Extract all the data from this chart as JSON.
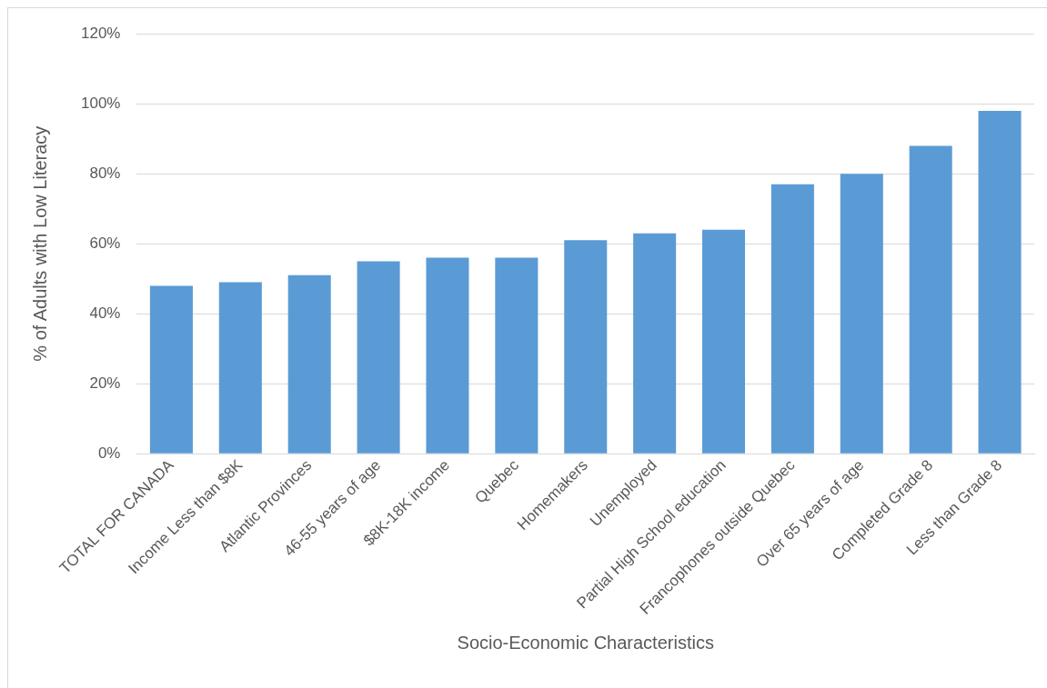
{
  "chart_data": {
    "type": "bar",
    "xlabel": "Socio-Economic Characteristics",
    "ylabel": "% of Adults with Low Literacy",
    "categories": [
      "TOTAL FOR CANADA",
      "Income Less than $8K",
      "Atlantic Provinces",
      "46-55 years of age",
      "$8K-18K income",
      "Quebec",
      "Homemakers",
      "Unemployed",
      "Partial High School education",
      "Francophones outside Quebec",
      "Over 65 years of age",
      "Completed Grade 8",
      "Less than Grade 8"
    ],
    "values": [
      48,
      49,
      51,
      55,
      56,
      56,
      61,
      63,
      64,
      77,
      80,
      88,
      98
    ],
    "color": "#5b9bd5",
    "ylim": [
      0,
      120
    ],
    "yticks": [
      {
        "value": 0,
        "label": "0%"
      },
      {
        "value": 20,
        "label": "20%"
      },
      {
        "value": 40,
        "label": "40%"
      },
      {
        "value": 60,
        "label": "60%"
      },
      {
        "value": 80,
        "label": "80%"
      },
      {
        "value": 100,
        "label": "100%"
      },
      {
        "value": 120,
        "label": "120%"
      }
    ],
    "grid": "y",
    "legend": false
  }
}
